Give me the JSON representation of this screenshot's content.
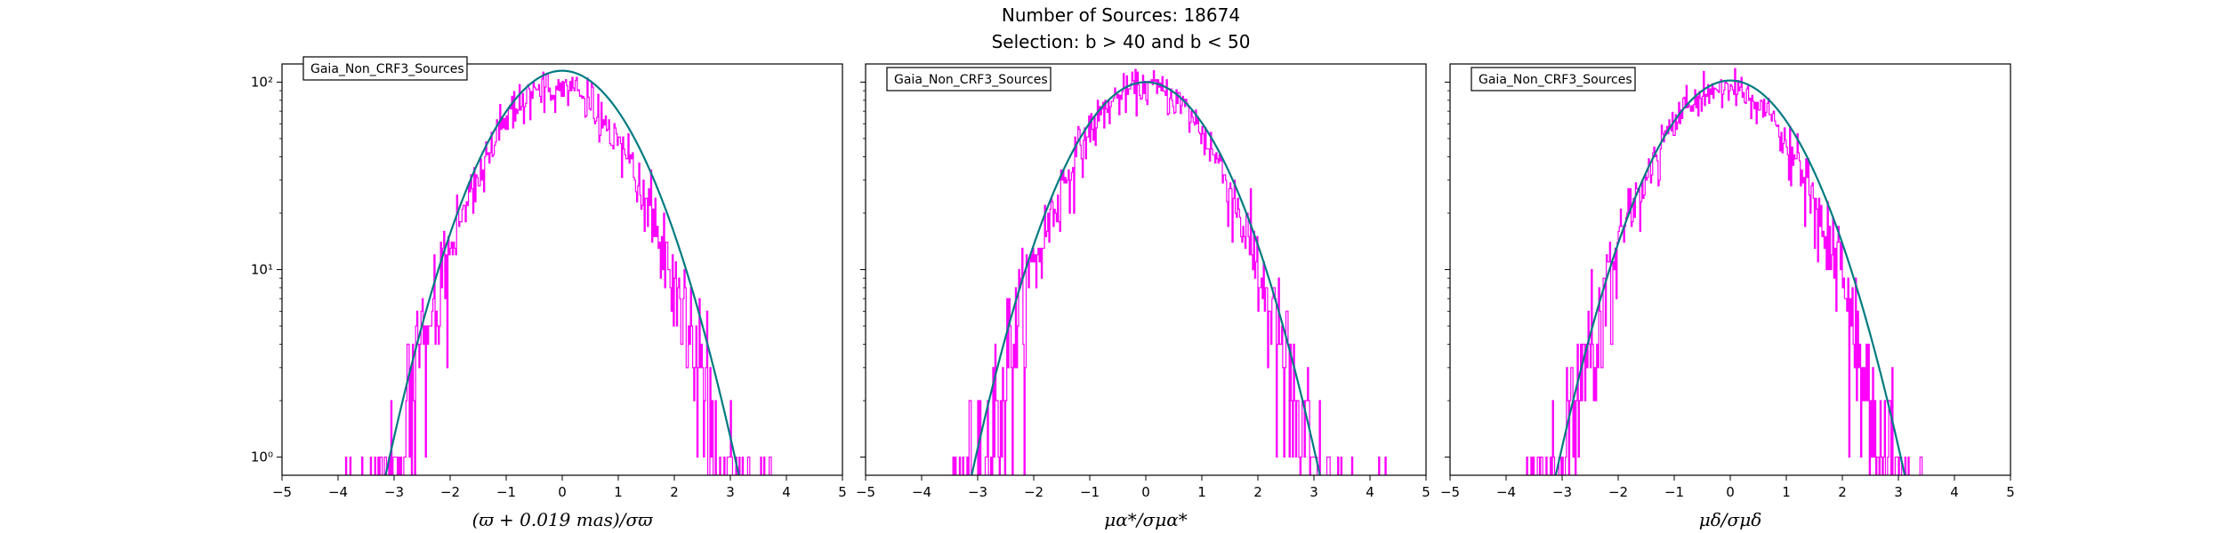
{
  "figure": {
    "title_line1": "Number of Sources: 18674",
    "title_line2": "Selection: b > 40 and b < 50"
  },
  "colors": {
    "histogram": "#ff00ff",
    "gaussian": "#007b80",
    "axes": "#000000",
    "background": "#ffffff"
  },
  "chart_data": [
    {
      "type": "histogram",
      "legend": "Gaia_Non_CRF3_Sources",
      "legend_placement": "top-left",
      "xlabel": "(ϖ + 0.019 mas)/σϖ",
      "xlim": [
        -5,
        5
      ],
      "ylim": [
        0.8,
        125
      ],
      "yscale": "log",
      "xticks": [
        "−5",
        "−4",
        "−3",
        "−2",
        "−1",
        "0",
        "1",
        "2",
        "3",
        "4",
        "5"
      ],
      "yticks": [
        "10⁰",
        "10¹",
        "10²"
      ],
      "grid": false,
      "gaussian_peak": 115,
      "histogram_peak": 95,
      "histogram_center": -0.1
    },
    {
      "type": "histogram",
      "legend": "Gaia_Non_CRF3_Sources",
      "legend_placement": "top-left",
      "xlabel": "μα*/σμα*",
      "xlim": [
        -5,
        5
      ],
      "ylim": [
        0.8,
        125
      ],
      "yscale": "log",
      "xticks": [
        "−5",
        "−4",
        "−3",
        "−2",
        "−1",
        "0",
        "1",
        "2",
        "3",
        "4",
        "5"
      ],
      "yticks": [],
      "grid": false,
      "gaussian_peak": 100,
      "histogram_peak": 95,
      "histogram_center": 0
    },
    {
      "type": "histogram",
      "legend": "Gaia_Non_CRF3_Sources",
      "legend_placement": "top-left",
      "xlabel": "μδ/σμδ",
      "xlim": [
        -5,
        5
      ],
      "ylim": [
        0.8,
        125
      ],
      "yscale": "log",
      "xticks": [
        "−5",
        "−4",
        "−3",
        "−2",
        "−1",
        "0",
        "1",
        "2",
        "3",
        "4",
        "5"
      ],
      "yticks": [],
      "grid": false,
      "gaussian_peak": 102,
      "histogram_peak": 92,
      "histogram_center": -0.1
    }
  ]
}
